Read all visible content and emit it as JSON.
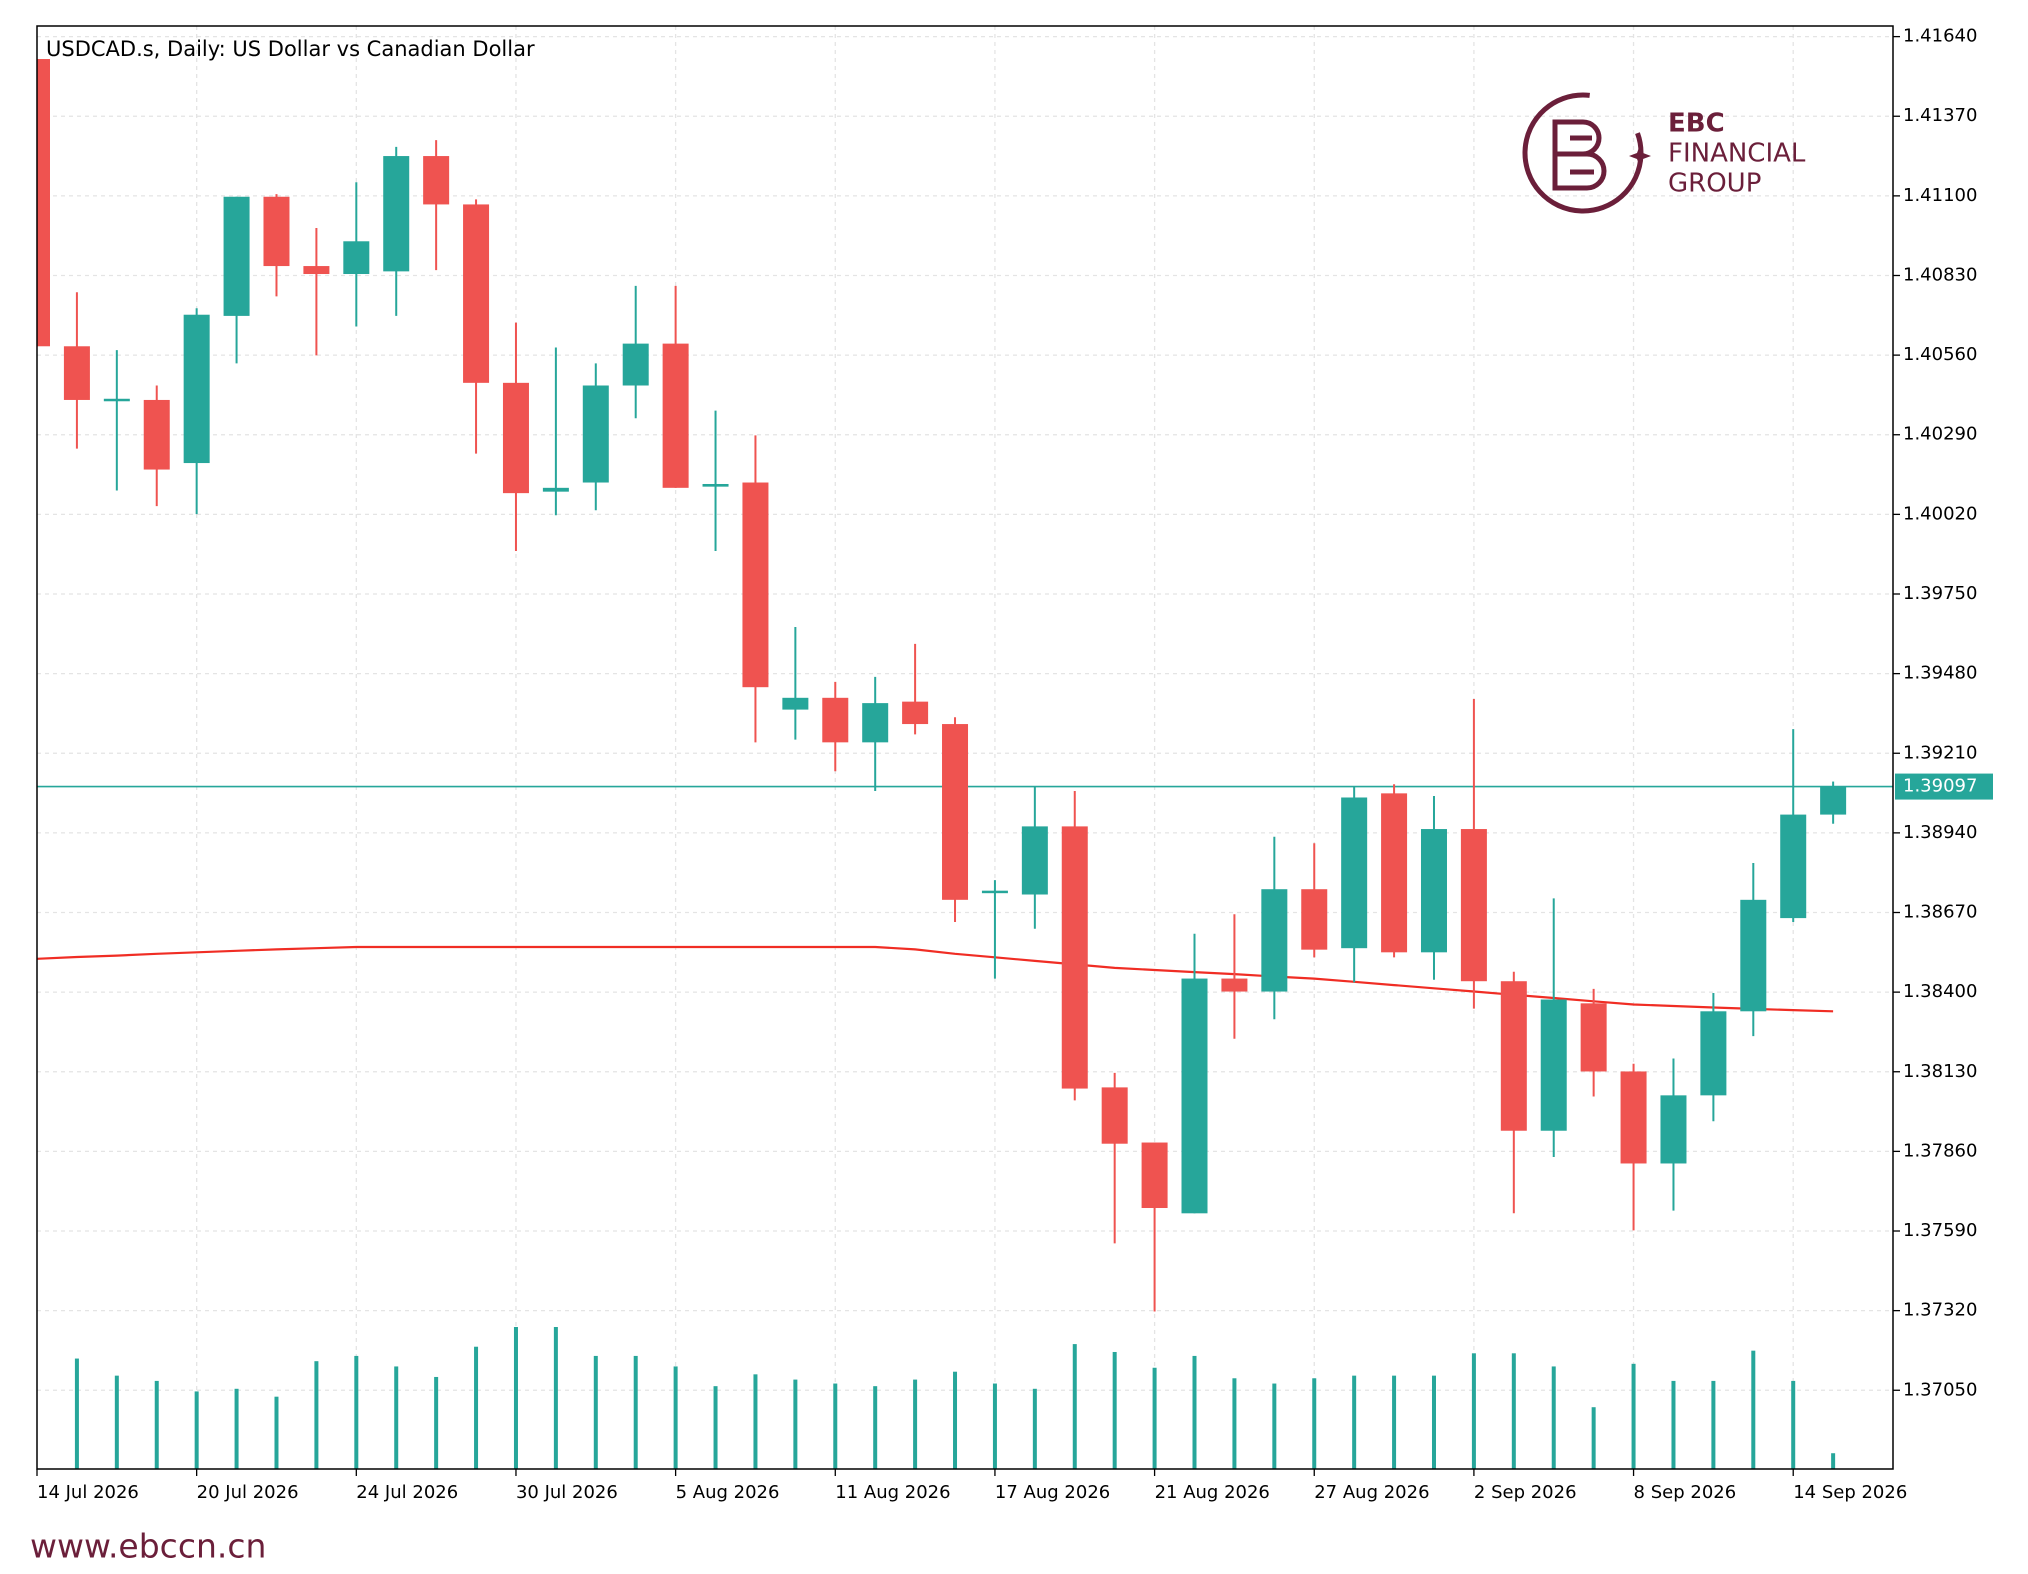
{
  "chart_data": {
    "type": "candlestick",
    "title": "USDCAD.s, Daily:  US Dollar vs Canadian Dollar",
    "categories": [
      "14 Jul 2026",
      null,
      null,
      null,
      "20 Jul 2026",
      null,
      null,
      null,
      "24 Jul 2026",
      null,
      null,
      null,
      "30 Jul 2026",
      null,
      null,
      null,
      "5 Aug 2026",
      null,
      null,
      null,
      "11 Aug 2026",
      null,
      null,
      null,
      "17 Aug 2026",
      null,
      null,
      null,
      "21 Aug 2026",
      null,
      null,
      null,
      "27 Aug 2026",
      null,
      null,
      null,
      "2 Sep 2026",
      null,
      null,
      null,
      "8 Sep 2026",
      null,
      null,
      null,
      "14 Sep 2026",
      null
    ],
    "open": [
      1.41564,
      1.4059,
      1.40408,
      1.40408,
      1.40194,
      1.40693,
      1.41097,
      1.40862,
      1.40835,
      1.40844,
      1.41235,
      1.41071,
      1.40466,
      1.40097,
      1.40128,
      1.40457,
      1.40599,
      1.40114,
      1.40128,
      1.39358,
      1.39398,
      1.39247,
      1.39385,
      1.39309,
      1.38736,
      1.38731,
      1.38962,
      1.38077,
      1.3789,
      1.3765,
      1.38446,
      1.38402,
      1.38749,
      1.38549,
      1.39074,
      1.38535,
      1.38953,
      1.38437,
      1.3793,
      1.38362,
      1.38131,
      1.37819,
      1.3805,
      1.38335,
      1.38651,
      1.39002
    ],
    "high": [
      1.41564,
      1.40773,
      1.40577,
      1.40457,
      1.40719,
      1.41097,
      1.41106,
      1.40991,
      1.41146,
      1.41266,
      1.41289,
      1.41088,
      1.4067,
      1.40586,
      1.40532,
      1.40795,
      1.40795,
      1.40372,
      1.40288,
      1.39638,
      1.39452,
      1.39469,
      1.39581,
      1.39332,
      1.3878,
      1.39096,
      1.39082,
      1.38126,
      1.3789,
      1.38598,
      1.38664,
      1.38927,
      1.38905,
      1.39096,
      1.39105,
      1.39065,
      1.39394,
      1.38469,
      1.38718,
      1.38411,
      1.38157,
      1.38175,
      1.38397,
      1.38838,
      1.39292,
      1.39114
    ],
    "low": [
      1.4059,
      1.40243,
      1.40101,
      1.40048,
      1.40021,
      1.40532,
      1.40759,
      1.40559,
      1.40657,
      1.40693,
      1.40848,
      1.40226,
      1.39896,
      1.40017,
      1.40034,
      1.40346,
      1.4011,
      1.39896,
      1.39247,
      1.39256,
      1.39149,
      1.39082,
      1.39274,
      1.38638,
      1.38446,
      1.38615,
      1.38033,
      1.37548,
      1.37317,
      1.3765,
      1.38242,
      1.38308,
      1.38518,
      1.38433,
      1.38518,
      1.38442,
      1.38344,
      1.3765,
      1.37841,
      1.38046,
      1.37592,
      1.37659,
      1.37962,
      1.38251,
      1.38638,
      1.38971
    ],
    "close": [
      1.4059,
      1.40408,
      1.40412,
      1.40172,
      1.40697,
      1.41097,
      1.40862,
      1.40835,
      1.40946,
      1.41235,
      1.41071,
      1.40466,
      1.40092,
      1.4011,
      1.40457,
      1.40599,
      1.4011,
      1.40123,
      1.39434,
      1.39398,
      1.39247,
      1.3938,
      1.39309,
      1.38713,
      1.38744,
      1.38962,
      1.38073,
      1.37886,
      1.37668,
      1.38446,
      1.38402,
      1.38749,
      1.38544,
      1.3906,
      1.38535,
      1.38953,
      1.38437,
      1.3793,
      1.38375,
      1.38131,
      1.37819,
      1.3805,
      1.38335,
      1.38713,
      1.39002,
      1.39097
    ],
    "up_color": "#26a69a",
    "down_color": "#ef5350",
    "moving_average": {
      "color": "#f02d24",
      "values": [
        1.38513,
        1.38519,
        1.38524,
        1.3853,
        1.38535,
        1.3854,
        1.38545,
        1.38549,
        1.38553,
        1.38553,
        1.38553,
        1.38553,
        1.38553,
        1.38553,
        1.38553,
        1.38553,
        1.38553,
        1.38553,
        1.38553,
        1.38553,
        1.38553,
        1.38553,
        1.38545,
        1.3853,
        1.38518,
        1.38506,
        1.38494,
        1.38482,
        1.38475,
        1.38468,
        1.38461,
        1.38453,
        1.38446,
        1.38435,
        1.38424,
        1.38413,
        1.38402,
        1.38391,
        1.3838,
        1.38369,
        1.38358,
        1.38353,
        1.38348,
        1.38343,
        1.38339,
        1.38335
      ]
    },
    "volume": {
      "color": "#26a69a",
      "values": [
        null,
        84,
        71,
        67,
        59,
        61,
        55,
        82,
        86,
        78,
        70,
        93,
        108,
        108,
        86,
        86,
        78,
        63,
        72,
        68,
        65,
        63,
        68,
        74,
        65,
        61,
        95,
        89,
        77,
        86,
        69,
        65,
        69,
        71,
        71,
        71,
        88,
        88,
        78,
        47,
        80,
        67,
        67,
        90,
        67,
        12
      ]
    },
    "current_price": {
      "value": 1.39097,
      "color": "#26a69a"
    },
    "ylim": [
      1.36783,
      1.41676
    ],
    "yticks": [
      {
        "value": 1.4164,
        "label": "1.41640"
      },
      {
        "value": 1.4137,
        "label": "1.41370"
      },
      {
        "value": 1.411,
        "label": "1.41100"
      },
      {
        "value": 1.4083,
        "label": "1.40830"
      },
      {
        "value": 1.4056,
        "label": "1.40560"
      },
      {
        "value": 1.4029,
        "label": "1.40290"
      },
      {
        "value": 1.4002,
        "label": "1.40020"
      },
      {
        "value": 1.3975,
        "label": "1.39750"
      },
      {
        "value": 1.3948,
        "label": "1.39480"
      },
      {
        "value": 1.3921,
        "label": "1.39210"
      },
      {
        "value": 1.3894,
        "label": "1.38940"
      },
      {
        "value": 1.3867,
        "label": "1.38670"
      },
      {
        "value": 1.384,
        "label": "1.38400"
      },
      {
        "value": 1.3813,
        "label": "1.38130"
      },
      {
        "value": 1.3786,
        "label": "1.37860"
      },
      {
        "value": 1.3759,
        "label": "1.37590"
      },
      {
        "value": 1.3732,
        "label": "1.37320"
      },
      {
        "value": 1.3705,
        "label": "1.37050"
      }
    ],
    "grid": true
  },
  "logo": {
    "line1": "EBC",
    "line2": "FINANCIAL",
    "line3": "GROUP"
  },
  "footer": {
    "url": "www.ebccn.cn"
  }
}
